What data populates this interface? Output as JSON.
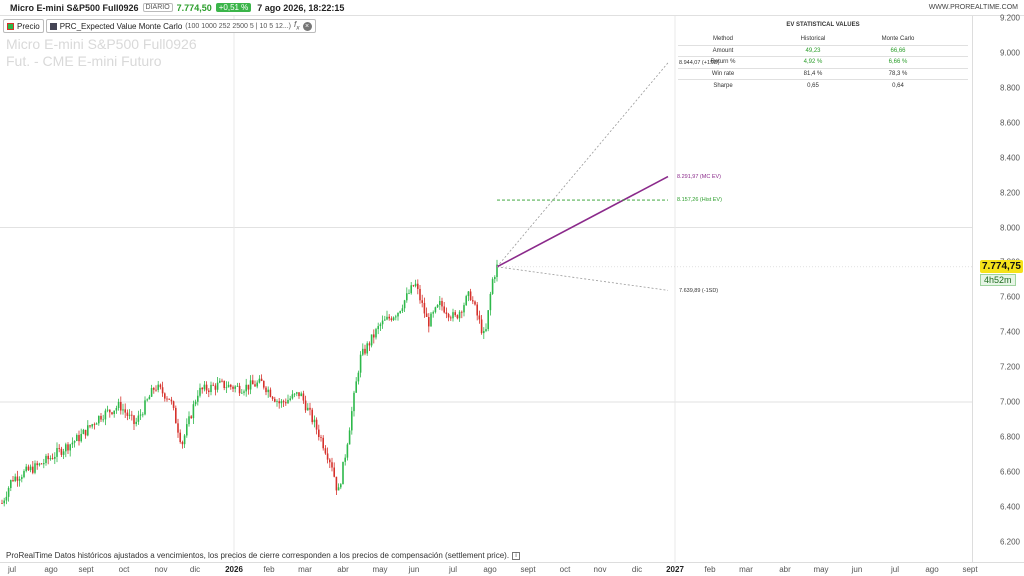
{
  "header": {
    "symbol": "Micro E-mini S&P500 Full0926",
    "timeframe": "DIARIO",
    "last_price": "7.774,50",
    "change": "+0,51 %",
    "datetime": "7 ago 2026, 18:22:15",
    "brand": "WWW.PROREALTIME.COM"
  },
  "indicators": {
    "price_tag": "Precio",
    "indicator_name": "PRC_Expected Value Monte Carlo",
    "indicator_params": "(100 1000 252 2500 5 | 10 5 12...)",
    "fx_icon": "fx-icon",
    "close_icon": "close-icon"
  },
  "watermark": {
    "line1": "Micro E-mini S&P500 Full0926",
    "line2": "Fut. - CME E-mini  Futuro"
  },
  "stats_table": {
    "title": "EV STATISTICAL VALUES",
    "headers": [
      "Method",
      "Historical",
      "Monte Carlo"
    ],
    "rows": [
      {
        "label": "Amount",
        "historical": "49,23",
        "monte_carlo": "66,66"
      },
      {
        "label": "Return %",
        "historical": "4,92  %",
        "monte_carlo": "6,66  %"
      },
      {
        "label": "Win rate",
        "historical": "81,4  %",
        "monte_carlo": "78,3  %"
      },
      {
        "label": "Sharpe",
        "historical": "0,65",
        "monte_carlo": "0,64"
      }
    ]
  },
  "annotations": {
    "upper": "8.944,07  (+1SD)",
    "mc_ev": "8.291,97  (MC EV)",
    "hist_ev": "8.157,26  (Hist EV)",
    "lower": "7.639,89  (-1SD)"
  },
  "price_box": "7.774,75",
  "time_box": "4h52m",
  "disclaimer": "ProRealTime Datos históricos ajustados a vencimientos, los precios de cierre corresponden a los precios de compensación (settlement price).",
  "y_axis": [
    "9.200",
    "9.000",
    "8.800",
    "8.600",
    "8.400",
    "8.200",
    "8.000",
    "7.800",
    "7.600",
    "7.400",
    "7.200",
    "7.000",
    "6.800",
    "6.600",
    "6.400",
    "6.200"
  ],
  "x_axis": [
    "jul",
    "ago",
    "sept",
    "oct",
    "nov",
    "dic",
    "2026",
    "feb",
    "mar",
    "abr",
    "may",
    "jun",
    "jul",
    "ago",
    "sept",
    "oct",
    "nov",
    "dic",
    "2027",
    "feb",
    "mar",
    "abr",
    "may",
    "jun",
    "jul",
    "ago",
    "sept"
  ],
  "colors": {
    "up": "#2db84a",
    "down": "#d6312b",
    "mc_line": "#8b2a8b",
    "hist_line": "#2a9d2a",
    "price_box": "#f5e21a"
  },
  "chart_data": {
    "type": "candlestick",
    "ylim": [
      6150,
      9250
    ],
    "x": [
      "jul 2025",
      "ago 2025",
      "sept 2025",
      "oct 2025",
      "nov 2025",
      "dic 2025",
      "ene 2026",
      "feb 2026",
      "mar 2026",
      "abr 2026",
      "may 2026",
      "jun 2026",
      "jul 2026",
      "ago 2026"
    ],
    "close_approx": [
      6450,
      6620,
      6780,
      6930,
      7080,
      7020,
      7120,
      7080,
      6880,
      6700,
      7380,
      7630,
      7560,
      7774.75
    ],
    "projections": [
      {
        "name": "MC EV",
        "from": 7774.75,
        "to": 8291.97
      },
      {
        "name": "Hist EV",
        "value": 8157.26
      },
      {
        "name": "+1SD",
        "value": 8944.07
      },
      {
        "name": "-1SD",
        "value": 7639.89
      }
    ]
  }
}
